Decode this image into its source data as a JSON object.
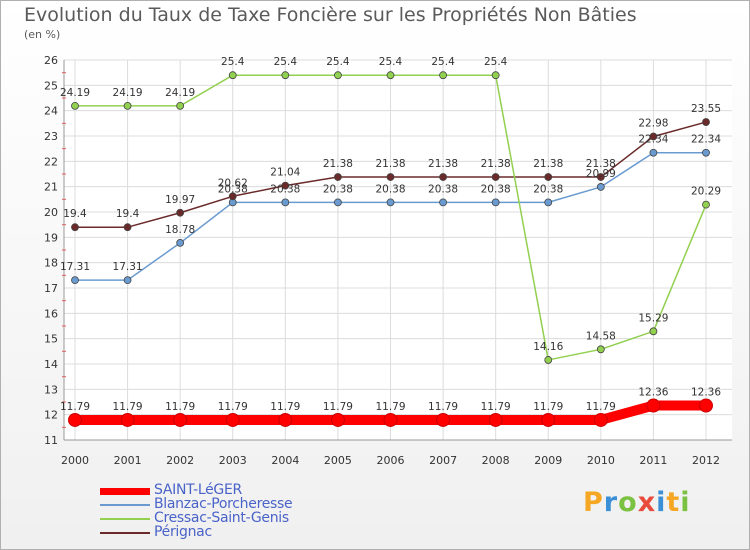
{
  "chart_data": {
    "type": "line",
    "title": "Evolution du Taux de Taxe Foncière sur les Propriétés Non Bâties",
    "ylabel": "(en %)",
    "xlabel": "",
    "categories": [
      "2000",
      "2001",
      "2002",
      "2003",
      "2004",
      "2005",
      "2006",
      "2007",
      "2008",
      "2009",
      "2010",
      "2011",
      "2012"
    ],
    "ylim": [
      11,
      26
    ],
    "yticks": [
      11,
      12,
      13,
      14,
      15,
      16,
      17,
      18,
      19,
      20,
      21,
      22,
      23,
      24,
      25,
      26
    ],
    "grid": true,
    "legend_position": "bottom-left",
    "series": [
      {
        "name": "SAINT-LéGER",
        "color": "#ff0000",
        "values": [
          11.79,
          11.79,
          11.79,
          11.79,
          11.79,
          11.79,
          11.79,
          11.79,
          11.79,
          11.79,
          11.79,
          12.36,
          12.36
        ],
        "labels": [
          "11.79",
          "11.79",
          "11.79",
          "11.79",
          "11.79",
          "11.79",
          "11.79",
          "11.79",
          "11.79",
          "11.79",
          "11.79",
          "12.36",
          "12.36"
        ]
      },
      {
        "name": "Blanzac-Porcheresse",
        "color": "#6a9bd0",
        "values": [
          17.31,
          17.31,
          18.78,
          20.38,
          20.38,
          20.38,
          20.38,
          20.38,
          20.38,
          20.38,
          20.99,
          22.34,
          22.34
        ],
        "labels": [
          "17.31",
          "17.31",
          "18.78",
          "20.38",
          "20.38",
          "20.38",
          "20.38",
          "20.38",
          "20.38",
          "20.38",
          "20.99",
          "22.34",
          "22.34"
        ]
      },
      {
        "name": "Cressac-Saint-Genis",
        "color": "#92d050",
        "values": [
          24.19,
          24.19,
          24.19,
          25.4,
          25.4,
          25.4,
          25.4,
          25.4,
          25.4,
          14.16,
          14.58,
          15.29,
          20.29
        ],
        "labels": [
          "24.19",
          "24.19",
          "24.19",
          "25.4",
          "25.4",
          "25.4",
          "25.4",
          "25.4",
          "25.4",
          "14.16",
          "14.58",
          "15.29",
          "20.29"
        ]
      },
      {
        "name": "Pérignac",
        "color": "#6b2a2a",
        "values": [
          19.4,
          19.4,
          19.97,
          20.62,
          21.04,
          21.38,
          21.38,
          21.38,
          21.38,
          21.38,
          21.38,
          22.98,
          23.55
        ],
        "labels": [
          "19.4",
          "19.4",
          "19.97",
          "20.62",
          "21.04",
          "21.38",
          "21.38",
          "21.38",
          "21.38",
          "21.38",
          "21.38",
          "22.98",
          "23.55"
        ]
      }
    ]
  },
  "logo": {
    "text": "Proxiti",
    "letters": [
      "P",
      "r",
      "o",
      "x",
      "i",
      "t",
      "i"
    ],
    "colors": [
      "#f5a623",
      "#3a8fd6",
      "#7cc242",
      "#e84b3c",
      "#3a8fd6",
      "#f5a623",
      "#7cc242"
    ]
  }
}
